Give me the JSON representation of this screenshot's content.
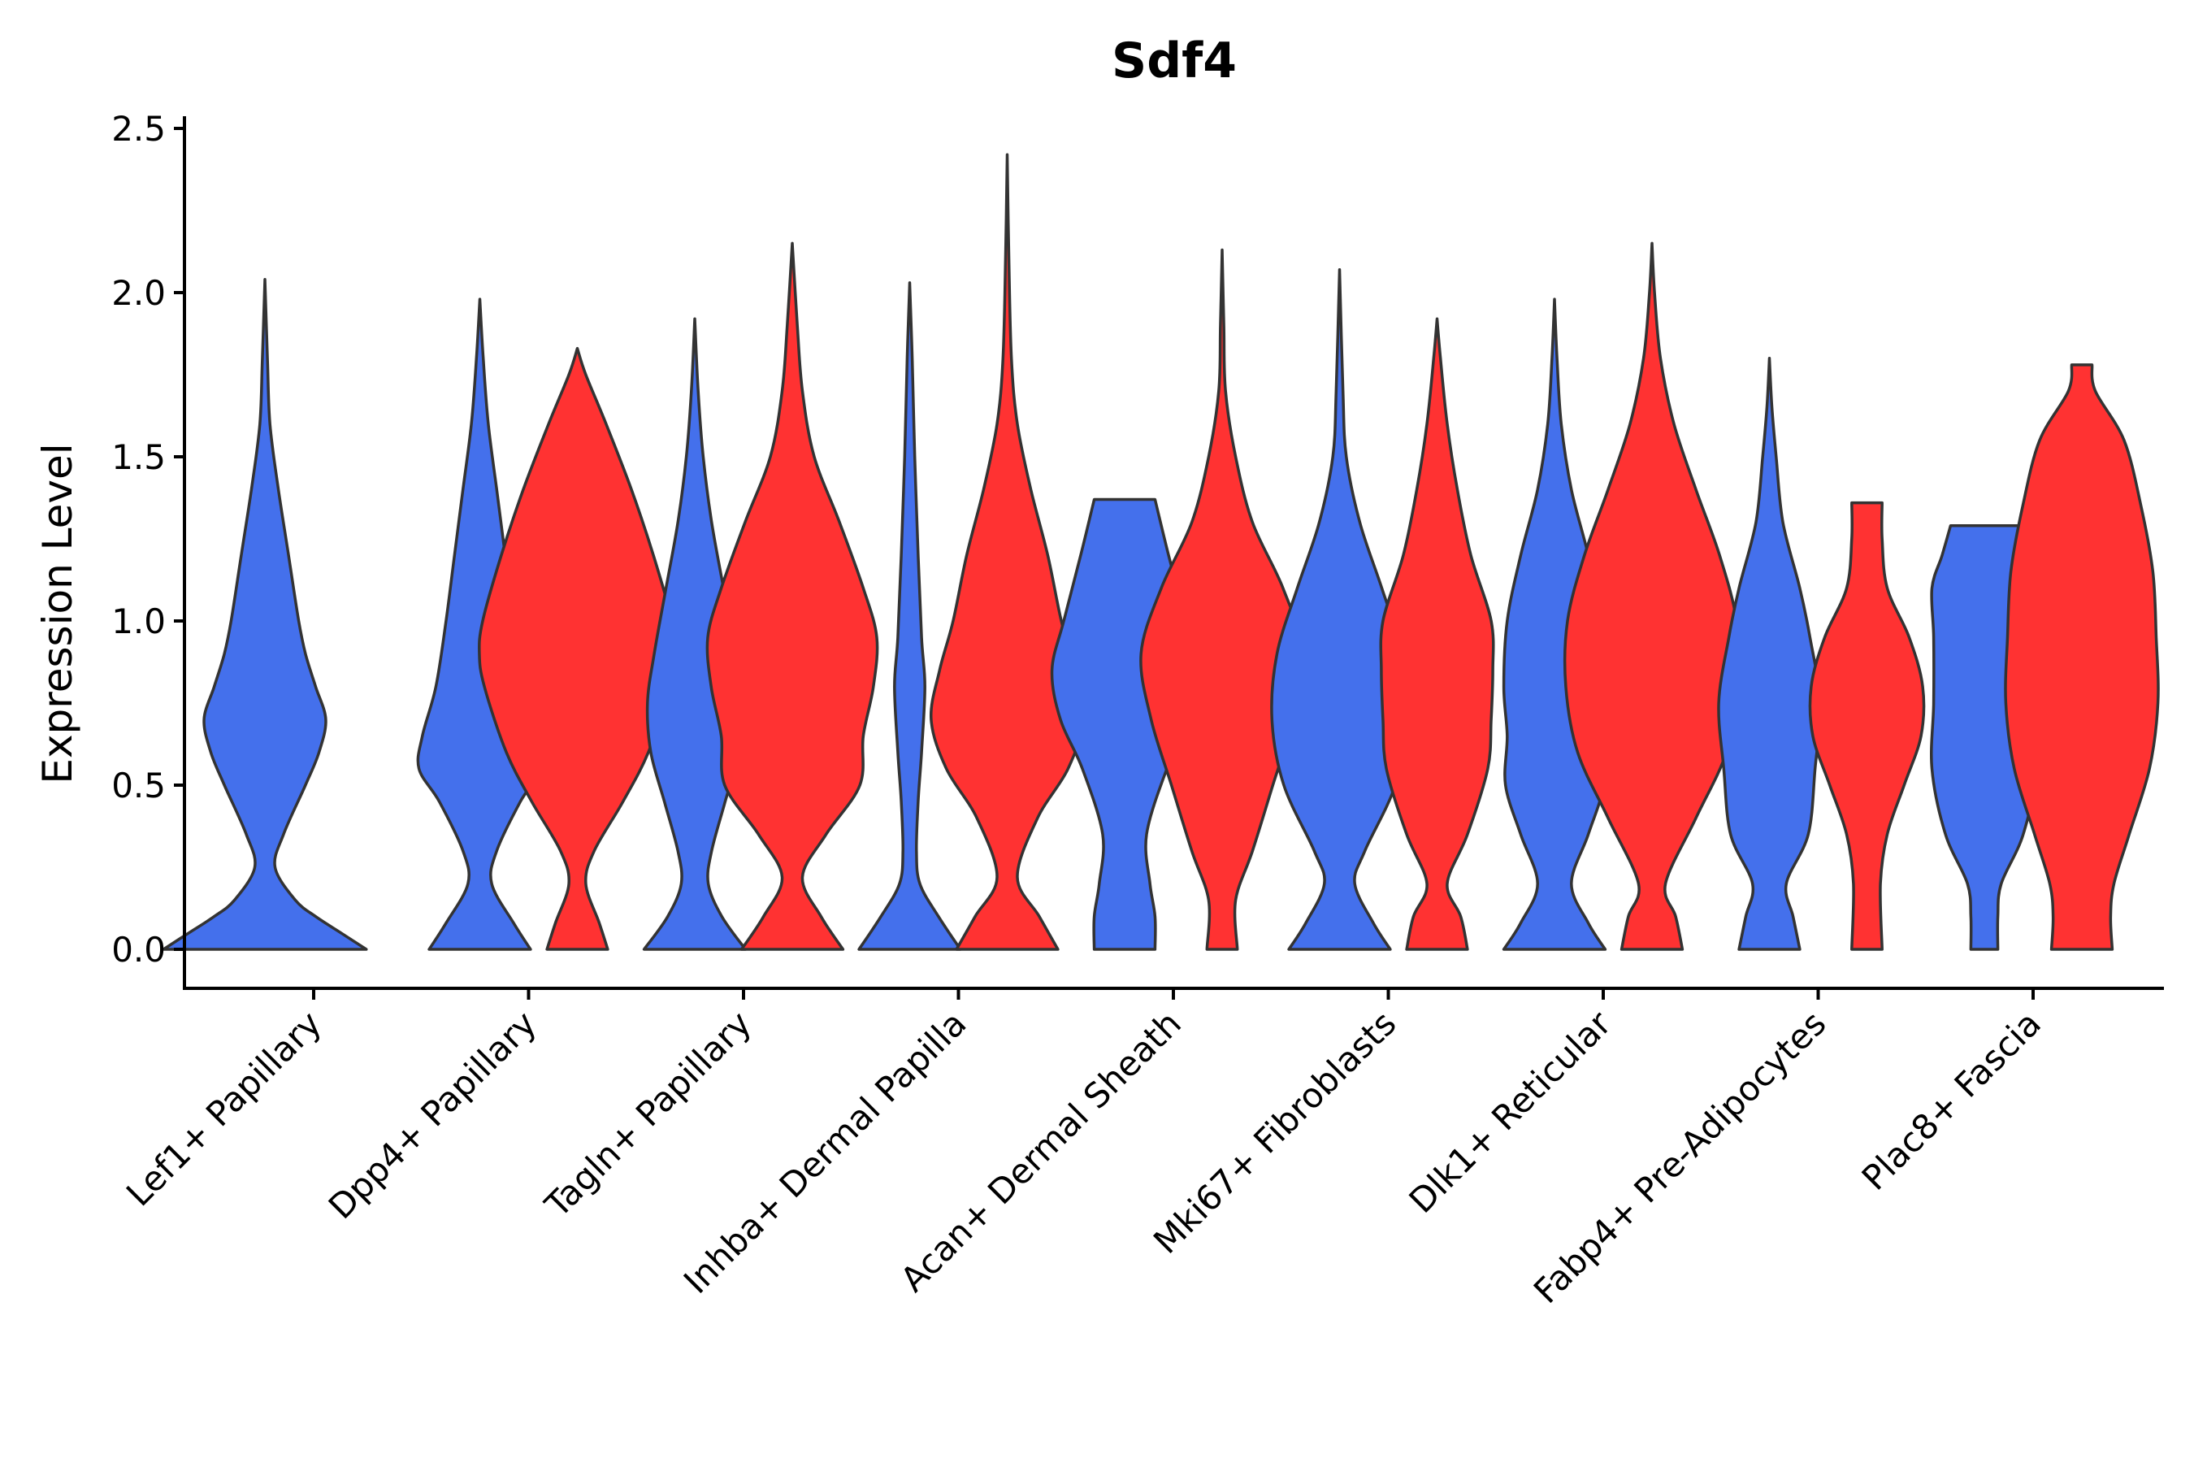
{
  "chart_data": {
    "type": "violin",
    "title": "Sdf4",
    "xlabel": "",
    "ylabel": "Expression Level",
    "ylim": [
      -0.12,
      2.55
    ],
    "yticks": [
      0.0,
      0.5,
      1.0,
      1.5,
      2.0,
      2.5
    ],
    "ytick_labels": [
      "0.0",
      "0.5",
      "1.0",
      "1.5",
      "2.0",
      "2.5"
    ],
    "grid": false,
    "legend": "none",
    "series_colors": {
      "blue": "#4470EC",
      "red": "#FF3232"
    },
    "outline_color": "#333333",
    "categories": [
      "Lef1+ Papillary",
      "Dpp4+ Papillary",
      "Tagln+ Papillary",
      "Inhba+ Dermal Papilla",
      "Acan+ Dermal Sheath",
      "Mki67+ Fibroblasts",
      "Dlk1+ Reticular",
      "Fabp4+ Pre-Adipocytes",
      "Plac8+ Fascia"
    ],
    "violins": [
      {
        "category": "Lef1+ Papillary",
        "group": "blue",
        "max": 2.04,
        "profile": [
          [
            0,
            0.6
          ],
          [
            0.05,
            0.45
          ],
          [
            0.1,
            0.3
          ],
          [
            0.15,
            0.18
          ],
          [
            0.25,
            0.06
          ],
          [
            0.35,
            0.11
          ],
          [
            0.5,
            0.24
          ],
          [
            0.6,
            0.32
          ],
          [
            0.7,
            0.36
          ],
          [
            0.8,
            0.3
          ],
          [
            0.9,
            0.24
          ],
          [
            1.0,
            0.2
          ],
          [
            1.2,
            0.14
          ],
          [
            1.4,
            0.08
          ],
          [
            1.6,
            0.03
          ],
          [
            1.8,
            0.015
          ],
          [
            2.04,
            0
          ]
        ]
      },
      {
        "category": "Dpp4+ Papillary",
        "group": "blue",
        "max": 1.98,
        "profile": [
          [
            0,
            0.3
          ],
          [
            0.08,
            0.2
          ],
          [
            0.2,
            0.07
          ],
          [
            0.3,
            0.1
          ],
          [
            0.45,
            0.24
          ],
          [
            0.55,
            0.36
          ],
          [
            0.65,
            0.34
          ],
          [
            0.8,
            0.26
          ],
          [
            1.0,
            0.2
          ],
          [
            1.2,
            0.15
          ],
          [
            1.4,
            0.1
          ],
          [
            1.6,
            0.05
          ],
          [
            1.8,
            0.02
          ],
          [
            1.98,
            0
          ]
        ]
      },
      {
        "category": "Dpp4+ Papillary",
        "group": "red",
        "max": 1.83,
        "profile": [
          [
            0,
            0.18
          ],
          [
            0.08,
            0.13
          ],
          [
            0.2,
            0.05
          ],
          [
            0.3,
            0.1
          ],
          [
            0.45,
            0.27
          ],
          [
            0.6,
            0.42
          ],
          [
            0.8,
            0.55
          ],
          [
            0.9,
            0.58
          ],
          [
            1.0,
            0.56
          ],
          [
            1.2,
            0.45
          ],
          [
            1.4,
            0.32
          ],
          [
            1.6,
            0.17
          ],
          [
            1.75,
            0.05
          ],
          [
            1.83,
            0
          ]
        ]
      },
      {
        "category": "Tagln+ Papillary",
        "group": "blue",
        "max": 1.92,
        "profile": [
          [
            0,
            0.3
          ],
          [
            0.1,
            0.16
          ],
          [
            0.2,
            0.08
          ],
          [
            0.3,
            0.1
          ],
          [
            0.45,
            0.18
          ],
          [
            0.6,
            0.26
          ],
          [
            0.75,
            0.28
          ],
          [
            0.9,
            0.24
          ],
          [
            1.1,
            0.17
          ],
          [
            1.3,
            0.1
          ],
          [
            1.5,
            0.05
          ],
          [
            1.7,
            0.02
          ],
          [
            1.92,
            0
          ]
        ]
      },
      {
        "category": "Tagln+ Papillary",
        "group": "red",
        "max": 2.15,
        "profile": [
          [
            0,
            0.3
          ],
          [
            0.1,
            0.17
          ],
          [
            0.22,
            0.06
          ],
          [
            0.35,
            0.2
          ],
          [
            0.5,
            0.4
          ],
          [
            0.65,
            0.42
          ],
          [
            0.8,
            0.48
          ],
          [
            0.95,
            0.5
          ],
          [
            1.1,
            0.42
          ],
          [
            1.3,
            0.28
          ],
          [
            1.5,
            0.13
          ],
          [
            1.7,
            0.06
          ],
          [
            1.9,
            0.03
          ],
          [
            2.15,
            0
          ]
        ]
      },
      {
        "category": "Inhba+ Dermal Papilla",
        "group": "blue",
        "max": 2.03,
        "profile": [
          [
            0,
            0.3
          ],
          [
            0.1,
            0.17
          ],
          [
            0.2,
            0.06
          ],
          [
            0.3,
            0.04
          ],
          [
            0.45,
            0.05
          ],
          [
            0.6,
            0.07
          ],
          [
            0.8,
            0.09
          ],
          [
            0.95,
            0.07
          ],
          [
            1.2,
            0.05
          ],
          [
            1.5,
            0.03
          ],
          [
            1.8,
            0.015
          ],
          [
            2.03,
            0
          ]
        ]
      },
      {
        "category": "Inhba+ Dermal Papilla",
        "group": "red",
        "max": 2.42,
        "profile": [
          [
            0,
            0.3
          ],
          [
            0.1,
            0.19
          ],
          [
            0.22,
            0.06
          ],
          [
            0.4,
            0.18
          ],
          [
            0.55,
            0.36
          ],
          [
            0.7,
            0.45
          ],
          [
            0.85,
            0.4
          ],
          [
            1.0,
            0.32
          ],
          [
            1.2,
            0.24
          ],
          [
            1.4,
            0.14
          ],
          [
            1.6,
            0.06
          ],
          [
            1.8,
            0.025
          ],
          [
            2.1,
            0.01
          ],
          [
            2.42,
            0
          ]
        ]
      },
      {
        "category": "Acan+ Dermal Sheath",
        "group": "blue",
        "max": 1.37,
        "profile": [
          [
            0,
            0.18
          ],
          [
            0.1,
            0.18
          ],
          [
            0.2,
            0.15
          ],
          [
            0.35,
            0.13
          ],
          [
            0.55,
            0.25
          ],
          [
            0.7,
            0.38
          ],
          [
            0.85,
            0.43
          ],
          [
            1.0,
            0.36
          ],
          [
            1.2,
            0.26
          ],
          [
            1.37,
            0.18
          ]
        ]
      },
      {
        "category": "Acan+ Dermal Sheath",
        "group": "red",
        "max": 2.13,
        "profile": [
          [
            0,
            0.09
          ],
          [
            0.15,
            0.08
          ],
          [
            0.3,
            0.18
          ],
          [
            0.5,
            0.3
          ],
          [
            0.7,
            0.42
          ],
          [
            0.9,
            0.48
          ],
          [
            1.1,
            0.36
          ],
          [
            1.3,
            0.18
          ],
          [
            1.5,
            0.08
          ],
          [
            1.7,
            0.02
          ],
          [
            1.9,
            0.01
          ],
          [
            2.13,
            0
          ]
        ]
      },
      {
        "category": "Mki67+ Fibroblasts",
        "group": "blue",
        "max": 2.07,
        "profile": [
          [
            0,
            0.3
          ],
          [
            0.08,
            0.2
          ],
          [
            0.2,
            0.09
          ],
          [
            0.3,
            0.15
          ],
          [
            0.5,
            0.33
          ],
          [
            0.7,
            0.4
          ],
          [
            0.9,
            0.37
          ],
          [
            1.1,
            0.25
          ],
          [
            1.3,
            0.12
          ],
          [
            1.5,
            0.04
          ],
          [
            1.7,
            0.02
          ],
          [
            2.07,
            0
          ]
        ]
      },
      {
        "category": "Mki67+ Fibroblasts",
        "group": "red",
        "max": 1.92,
        "profile": [
          [
            0,
            0.18
          ],
          [
            0.1,
            0.14
          ],
          [
            0.2,
            0.06
          ],
          [
            0.35,
            0.18
          ],
          [
            0.55,
            0.3
          ],
          [
            0.7,
            0.32
          ],
          [
            0.85,
            0.33
          ],
          [
            1.0,
            0.32
          ],
          [
            1.2,
            0.2
          ],
          [
            1.4,
            0.12
          ],
          [
            1.6,
            0.06
          ],
          [
            1.8,
            0.02
          ],
          [
            1.92,
            0
          ]
        ]
      },
      {
        "category": "Dlk1+ Reticular",
        "group": "blue",
        "max": 1.98,
        "profile": [
          [
            0,
            0.3
          ],
          [
            0.08,
            0.2
          ],
          [
            0.2,
            0.1
          ],
          [
            0.35,
            0.2
          ],
          [
            0.5,
            0.29
          ],
          [
            0.65,
            0.28
          ],
          [
            0.8,
            0.3
          ],
          [
            1.0,
            0.28
          ],
          [
            1.2,
            0.2
          ],
          [
            1.4,
            0.1
          ],
          [
            1.6,
            0.04
          ],
          [
            1.8,
            0.015
          ],
          [
            1.98,
            0
          ]
        ]
      },
      {
        "category": "Dlk1+ Reticular",
        "group": "red",
        "max": 2.15,
        "profile": [
          [
            0,
            0.18
          ],
          [
            0.1,
            0.14
          ],
          [
            0.2,
            0.08
          ],
          [
            0.4,
            0.26
          ],
          [
            0.6,
            0.44
          ],
          [
            0.8,
            0.51
          ],
          [
            1.0,
            0.5
          ],
          [
            1.2,
            0.4
          ],
          [
            1.4,
            0.26
          ],
          [
            1.6,
            0.13
          ],
          [
            1.8,
            0.05
          ],
          [
            2.0,
            0.015
          ],
          [
            2.15,
            0
          ]
        ]
      },
      {
        "category": "Fabp4+ Pre-Adipocytes",
        "group": "blue",
        "max": 1.8,
        "profile": [
          [
            0,
            0.18
          ],
          [
            0.1,
            0.14
          ],
          [
            0.2,
            0.1
          ],
          [
            0.35,
            0.23
          ],
          [
            0.55,
            0.27
          ],
          [
            0.75,
            0.3
          ],
          [
            0.95,
            0.24
          ],
          [
            1.1,
            0.18
          ],
          [
            1.3,
            0.08
          ],
          [
            1.5,
            0.04
          ],
          [
            1.65,
            0.015
          ],
          [
            1.8,
            0
          ]
        ]
      },
      {
        "category": "Fabp4+ Pre-Adipocytes",
        "group": "red",
        "max": 1.36,
        "profile": [
          [
            0,
            0.09
          ],
          [
            0.2,
            0.08
          ],
          [
            0.35,
            0.12
          ],
          [
            0.5,
            0.22
          ],
          [
            0.65,
            0.32
          ],
          [
            0.8,
            0.33
          ],
          [
            0.95,
            0.25
          ],
          [
            1.1,
            0.12
          ],
          [
            1.25,
            0.09
          ],
          [
            1.36,
            0.09
          ]
        ]
      },
      {
        "category": "Plac8+ Fascia",
        "group": "blue",
        "max": 1.29,
        "profile": [
          [
            0,
            0.08
          ],
          [
            0.1,
            0.08
          ],
          [
            0.2,
            0.1
          ],
          [
            0.35,
            0.23
          ],
          [
            0.55,
            0.31
          ],
          [
            0.75,
            0.3
          ],
          [
            0.95,
            0.3
          ],
          [
            1.1,
            0.31
          ],
          [
            1.2,
            0.25
          ],
          [
            1.29,
            0.2
          ]
        ]
      },
      {
        "category": "Plac8+ Fascia",
        "group": "red",
        "max": 1.78,
        "profile": [
          [
            0,
            0.18
          ],
          [
            0.1,
            0.17
          ],
          [
            0.2,
            0.19
          ],
          [
            0.35,
            0.28
          ],
          [
            0.55,
            0.4
          ],
          [
            0.75,
            0.45
          ],
          [
            0.95,
            0.44
          ],
          [
            1.15,
            0.42
          ],
          [
            1.35,
            0.35
          ],
          [
            1.55,
            0.25
          ],
          [
            1.7,
            0.08
          ],
          [
            1.78,
            0.06
          ]
        ]
      }
    ]
  }
}
